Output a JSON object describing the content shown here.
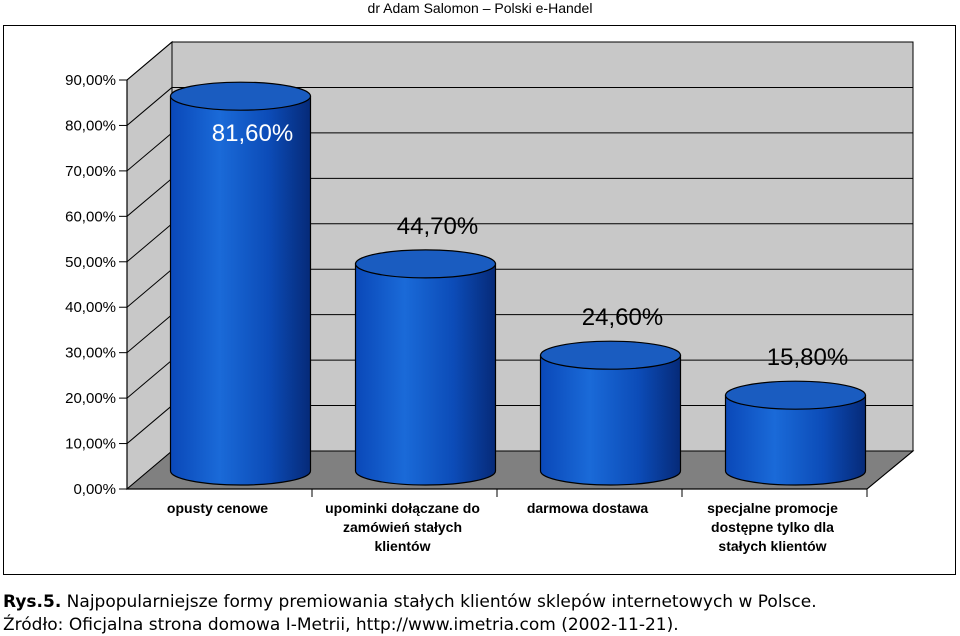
{
  "header": {
    "text": "dr Adam Salomon – Polski e-Handel"
  },
  "chart_data": {
    "type": "bar",
    "style": "3d-cylinder",
    "categories": [
      [
        "opusty cenowe"
      ],
      [
        "upominki dołączane do",
        "zamówień stałych",
        "klientów"
      ],
      [
        "darmowa dostawa"
      ],
      [
        "specjalne promocje",
        "dostępne tylko dla",
        "stałych klientów"
      ]
    ],
    "values": [
      81.6,
      44.7,
      24.6,
      15.8
    ],
    "value_labels": [
      "81,60%",
      "44,70%",
      "24,60%",
      "15,80%"
    ],
    "yticks": [
      "0,00%",
      "10,00%",
      "20,00%",
      "30,00%",
      "40,00%",
      "50,00%",
      "60,00%",
      "70,00%",
      "80,00%",
      "90,00%"
    ],
    "ylim": [
      0,
      90
    ],
    "grid": true,
    "legend": "none",
    "colors": {
      "bar": "#1560c8",
      "bar_dark": "#062a78",
      "bar_top": "#1a5cc0",
      "wall": "#c8c8c8",
      "floor": "#808080"
    }
  },
  "caption": {
    "line1_prefix": "Rys.5.",
    "line1_text": " Najpopularniejsze formy premiowania stałych klientów sklepów internetowych w Polsce.",
    "line2": "Źródło: Oficjalna strona domowa I-Metrii, http://www.imetria.com (2002-11-21)."
  }
}
